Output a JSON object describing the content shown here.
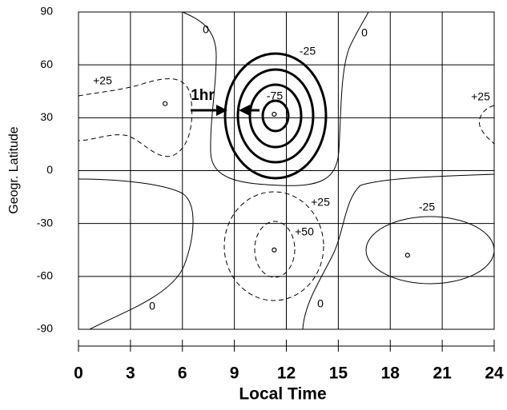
{
  "chart_data": {
    "type": "contour",
    "xlabel": "Local Time",
    "ylabel": "Geogr. Latitude",
    "xlim": [
      0,
      24
    ],
    "ylim": [
      -90,
      90
    ],
    "xticks": [
      0,
      3,
      6,
      9,
      12,
      15,
      18,
      21,
      24
    ],
    "yticks": [
      90,
      60,
      30,
      0,
      -30,
      -60,
      -90
    ],
    "grid": true,
    "points": {
      "x": [
        5,
        11.3,
        11.3,
        19
      ],
      "y": [
        38,
        32,
        -45,
        -48
      ]
    },
    "annotations": [
      "0",
      "0",
      "0",
      "0",
      "-25",
      "-75",
      "+25",
      "+25",
      "+25",
      "+50",
      "-25",
      "1hr"
    ]
  }
}
